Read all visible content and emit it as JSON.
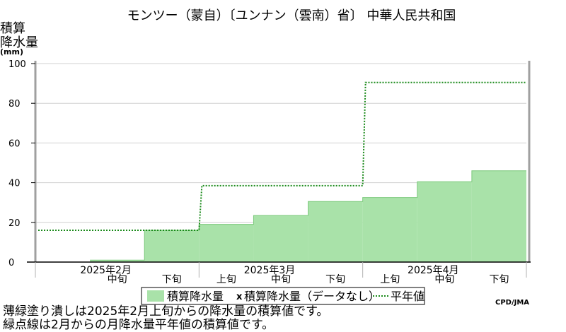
{
  "chart_data": {
    "type": "area",
    "title": "モンツー（蒙自）〔ユンナン（雲南）省〕 中華人民共和国",
    "ylabel_lines": [
      "積算",
      "降水量",
      "(mm)"
    ],
    "ylim": [
      0,
      100
    ],
    "yticks": [
      "0",
      "20",
      "40",
      "60",
      "80",
      "100"
    ],
    "x_months": [
      "2025年2月",
      "2025年3月",
      "2025年4月"
    ],
    "x_dekads": [
      "中旬",
      "下旬",
      "上旬",
      "中旬",
      "下旬",
      "上旬",
      "中旬",
      "下旬"
    ],
    "grid": true,
    "legend_position": "bottom",
    "series": [
      {
        "name": "積算降水量",
        "style": "filled-step",
        "color": "#a9e2a9",
        "dekads": [
          "2月中旬",
          "2月下旬",
          "3月上旬",
          "3月中旬",
          "3月下旬",
          "4月上旬",
          "4月中旬",
          "4月下旬"
        ],
        "values": [
          1,
          16,
          19,
          23.5,
          30.5,
          32.5,
          40.5,
          46
        ]
      },
      {
        "name": "積算降水量（データなし）",
        "style": "marker",
        "marker": "x",
        "values": []
      },
      {
        "name": "平年値",
        "style": "dotted-step",
        "color": "#1a8a1a",
        "months": [
          "2月",
          "3月",
          "4月"
        ],
        "values": [
          16,
          38.5,
          90.5
        ]
      }
    ],
    "credit": "CPD/JMA",
    "notes": [
      "薄緑塗り潰しは2025年2月上旬からの降水量の積算値です。",
      "緑点線は2月からの月降水量平年値の積算値です。"
    ]
  }
}
